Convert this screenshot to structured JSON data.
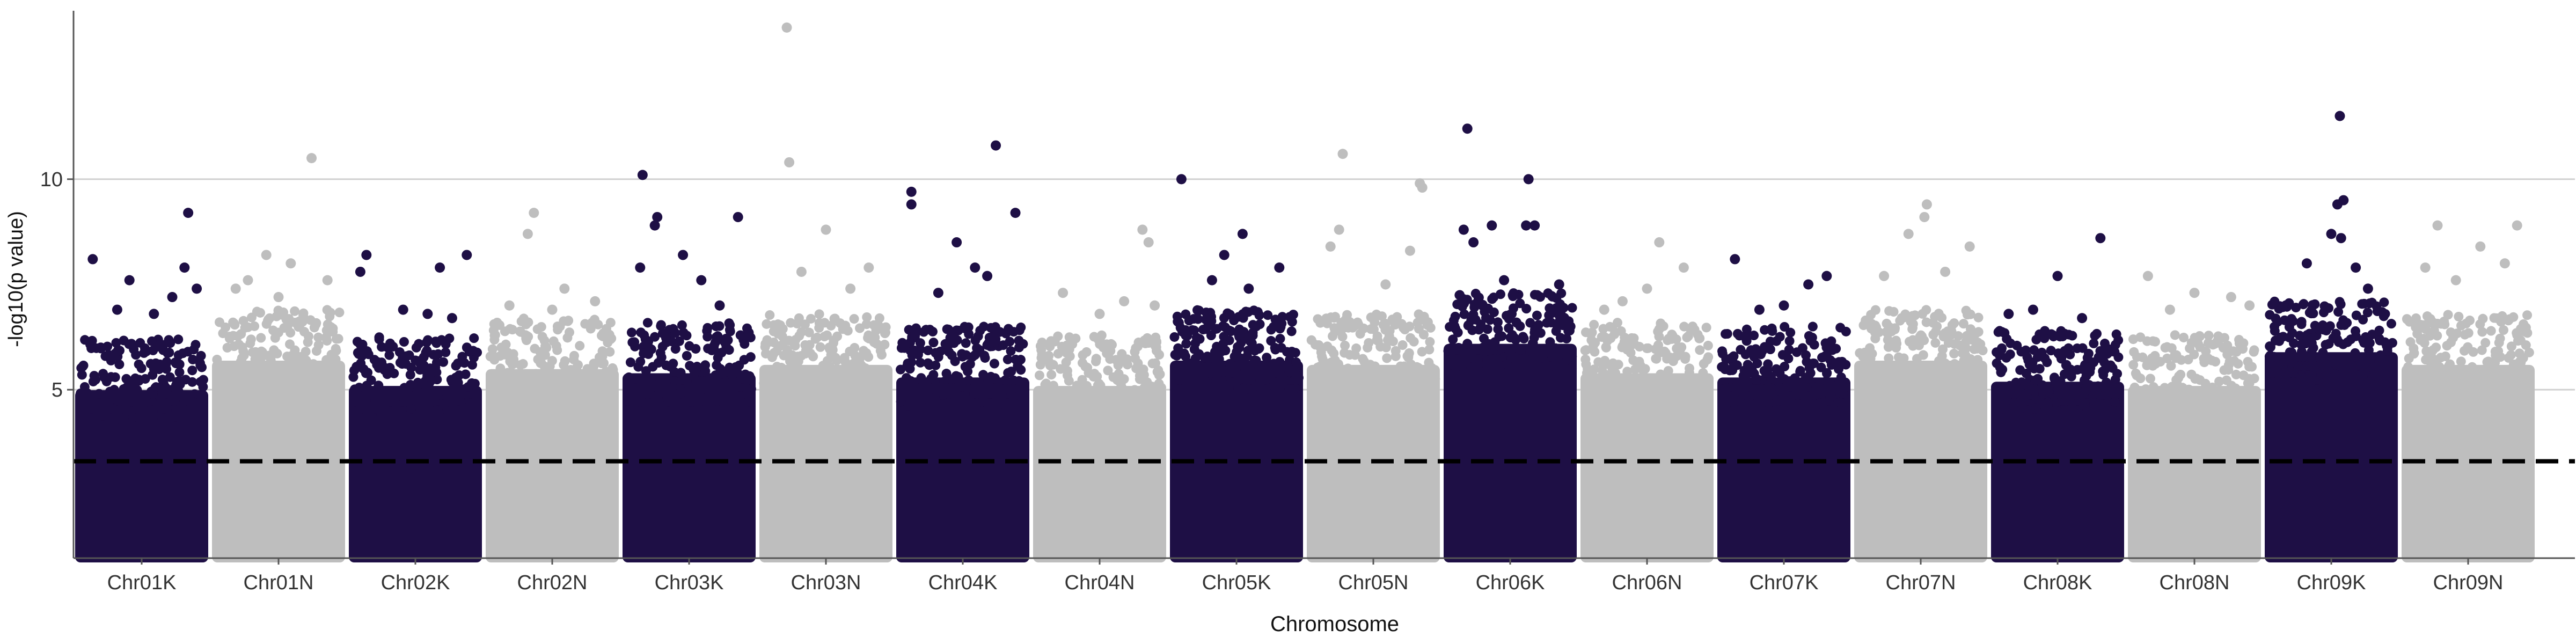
{
  "chart_data": {
    "type": "scatter",
    "subtype": "manhattan",
    "title": "",
    "xlabel": "Chromosome",
    "ylabel": "-log10(p value)",
    "ylim": [
      1,
      14
    ],
    "yticks": [
      5,
      10
    ],
    "grid": {
      "horizontal_major": true,
      "vertical": false
    },
    "threshold": {
      "value": 3.3,
      "style": "dashed",
      "color": "#000000"
    },
    "colors": {
      "dark": "#1e0f45",
      "light": "#bebebe"
    },
    "point_floor": 1.0,
    "categories": [
      "Chr01K",
      "Chr01N",
      "Chr02K",
      "Chr02N",
      "Chr03K",
      "Chr03N",
      "Chr04K",
      "Chr04N",
      "Chr05K",
      "Chr05N",
      "Chr06K",
      "Chr06N",
      "Chr07K",
      "Chr07N",
      "Chr08K",
      "Chr08N",
      "Chr09K",
      "Chr09N"
    ],
    "series": [
      {
        "category": "Chr01K",
        "color": "dark",
        "dense_top": 5.5,
        "points": [
          [
            0.1,
            8.1
          ],
          [
            0.4,
            7.6
          ],
          [
            0.6,
            6.8
          ],
          [
            0.88,
            9.2
          ],
          [
            0.85,
            7.9
          ],
          [
            0.95,
            7.4
          ],
          [
            0.75,
            7.2
          ],
          [
            0.3,
            6.9
          ]
        ]
      },
      {
        "category": "Chr01N",
        "color": "light",
        "dense_top": 6.2,
        "points": [
          [
            0.77,
            10.5
          ],
          [
            0.4,
            8.2
          ],
          [
            0.25,
            7.6
          ],
          [
            0.6,
            8.0
          ],
          [
            0.9,
            7.6
          ],
          [
            0.15,
            7.4
          ],
          [
            0.5,
            7.2
          ]
        ]
      },
      {
        "category": "Chr02K",
        "color": "dark",
        "dense_top": 5.6,
        "points": [
          [
            0.1,
            8.2
          ],
          [
            0.05,
            7.8
          ],
          [
            0.7,
            7.9
          ],
          [
            0.92,
            8.2
          ],
          [
            0.4,
            6.9
          ],
          [
            0.6,
            6.8
          ],
          [
            0.8,
            6.7
          ]
        ]
      },
      {
        "category": "Chr02N",
        "color": "light",
        "dense_top": 6.0,
        "points": [
          [
            0.35,
            9.2
          ],
          [
            0.3,
            8.7
          ],
          [
            0.6,
            7.4
          ],
          [
            0.85,
            7.1
          ],
          [
            0.15,
            7.0
          ],
          [
            0.5,
            6.9
          ]
        ]
      },
      {
        "category": "Chr03K",
        "color": "dark",
        "dense_top": 5.9,
        "points": [
          [
            0.12,
            10.1
          ],
          [
            0.24,
            9.1
          ],
          [
            0.22,
            8.9
          ],
          [
            0.45,
            8.2
          ],
          [
            0.9,
            9.1
          ],
          [
            0.1,
            7.9
          ],
          [
            0.6,
            7.6
          ],
          [
            0.75,
            7.0
          ]
        ]
      },
      {
        "category": "Chr03N",
        "color": "light",
        "dense_top": 6.1,
        "points": [
          [
            0.18,
            13.6
          ],
          [
            0.2,
            10.4
          ],
          [
            0.5,
            8.8
          ],
          [
            0.85,
            7.9
          ],
          [
            0.3,
            7.8
          ],
          [
            0.7,
            7.4
          ]
        ]
      },
      {
        "category": "Chr04K",
        "color": "dark",
        "dense_top": 5.8,
        "points": [
          [
            0.08,
            9.7
          ],
          [
            0.08,
            9.4
          ],
          [
            0.45,
            8.5
          ],
          [
            0.77,
            10.8
          ],
          [
            0.93,
            9.2
          ],
          [
            0.6,
            7.9
          ],
          [
            0.7,
            7.7
          ],
          [
            0.3,
            7.3
          ]
        ]
      },
      {
        "category": "Chr04N",
        "color": "light",
        "dense_top": 5.6,
        "points": [
          [
            0.85,
            8.8
          ],
          [
            0.9,
            8.5
          ],
          [
            0.2,
            7.3
          ],
          [
            0.5,
            6.8
          ],
          [
            0.7,
            7.1
          ],
          [
            0.95,
            7.0
          ]
        ]
      },
      {
        "category": "Chr05K",
        "color": "dark",
        "dense_top": 6.2,
        "points": [
          [
            0.05,
            10.0
          ],
          [
            0.55,
            8.7
          ],
          [
            0.4,
            8.2
          ],
          [
            0.85,
            7.9
          ],
          [
            0.3,
            7.6
          ],
          [
            0.6,
            7.4
          ]
        ]
      },
      {
        "category": "Chr05N",
        "color": "light",
        "dense_top": 6.1,
        "points": [
          [
            0.25,
            10.6
          ],
          [
            0.88,
            9.9
          ],
          [
            0.9,
            9.8
          ],
          [
            0.22,
            8.8
          ],
          [
            0.15,
            8.4
          ],
          [
            0.6,
            7.5
          ],
          [
            0.8,
            8.3
          ]
        ]
      },
      {
        "category": "Chr06K",
        "color": "dark",
        "dense_top": 6.6,
        "points": [
          [
            0.15,
            11.2
          ],
          [
            0.35,
            8.9
          ],
          [
            0.65,
            10.0
          ],
          [
            0.63,
            8.9
          ],
          [
            0.7,
            8.9
          ],
          [
            0.12,
            8.8
          ],
          [
            0.2,
            8.5
          ],
          [
            0.45,
            7.6
          ],
          [
            0.9,
            7.5
          ]
        ]
      },
      {
        "category": "Chr06N",
        "color": "light",
        "dense_top": 5.9,
        "points": [
          [
            0.6,
            8.5
          ],
          [
            0.8,
            7.9
          ],
          [
            0.3,
            7.1
          ],
          [
            0.5,
            7.4
          ],
          [
            0.15,
            6.9
          ]
        ]
      },
      {
        "category": "Chr07K",
        "color": "dark",
        "dense_top": 5.8,
        "points": [
          [
            0.1,
            8.1
          ],
          [
            0.85,
            7.7
          ],
          [
            0.7,
            7.5
          ],
          [
            0.5,
            7.0
          ],
          [
            0.3,
            6.9
          ]
        ]
      },
      {
        "category": "Chr07N",
        "color": "light",
        "dense_top": 6.2,
        "points": [
          [
            0.55,
            9.4
          ],
          [
            0.53,
            9.1
          ],
          [
            0.4,
            8.7
          ],
          [
            0.9,
            8.4
          ],
          [
            0.2,
            7.7
          ],
          [
            0.7,
            7.8
          ]
        ]
      },
      {
        "category": "Chr08K",
        "color": "dark",
        "dense_top": 5.7,
        "points": [
          [
            0.85,
            8.6
          ],
          [
            0.5,
            7.7
          ],
          [
            0.1,
            6.8
          ],
          [
            0.3,
            6.9
          ],
          [
            0.7,
            6.7
          ]
        ]
      },
      {
        "category": "Chr08N",
        "color": "light",
        "dense_top": 5.6,
        "points": [
          [
            0.12,
            7.7
          ],
          [
            0.5,
            7.3
          ],
          [
            0.8,
            7.2
          ],
          [
            0.3,
            6.9
          ],
          [
            0.95,
            7.0
          ]
        ]
      },
      {
        "category": "Chr09K",
        "color": "dark",
        "dense_top": 6.4,
        "points": [
          [
            0.57,
            11.5
          ],
          [
            0.6,
            9.5
          ],
          [
            0.55,
            9.4
          ],
          [
            0.5,
            8.7
          ],
          [
            0.58,
            8.6
          ],
          [
            0.3,
            8.0
          ],
          [
            0.7,
            7.9
          ],
          [
            0.8,
            7.4
          ]
        ]
      },
      {
        "category": "Chr09N",
        "color": "light",
        "dense_top": 6.1,
        "points": [
          [
            0.25,
            8.9
          ],
          [
            0.9,
            8.9
          ],
          [
            0.6,
            8.4
          ],
          [
            0.8,
            8.0
          ],
          [
            0.4,
            7.6
          ],
          [
            0.15,
            7.9
          ]
        ]
      }
    ]
  }
}
